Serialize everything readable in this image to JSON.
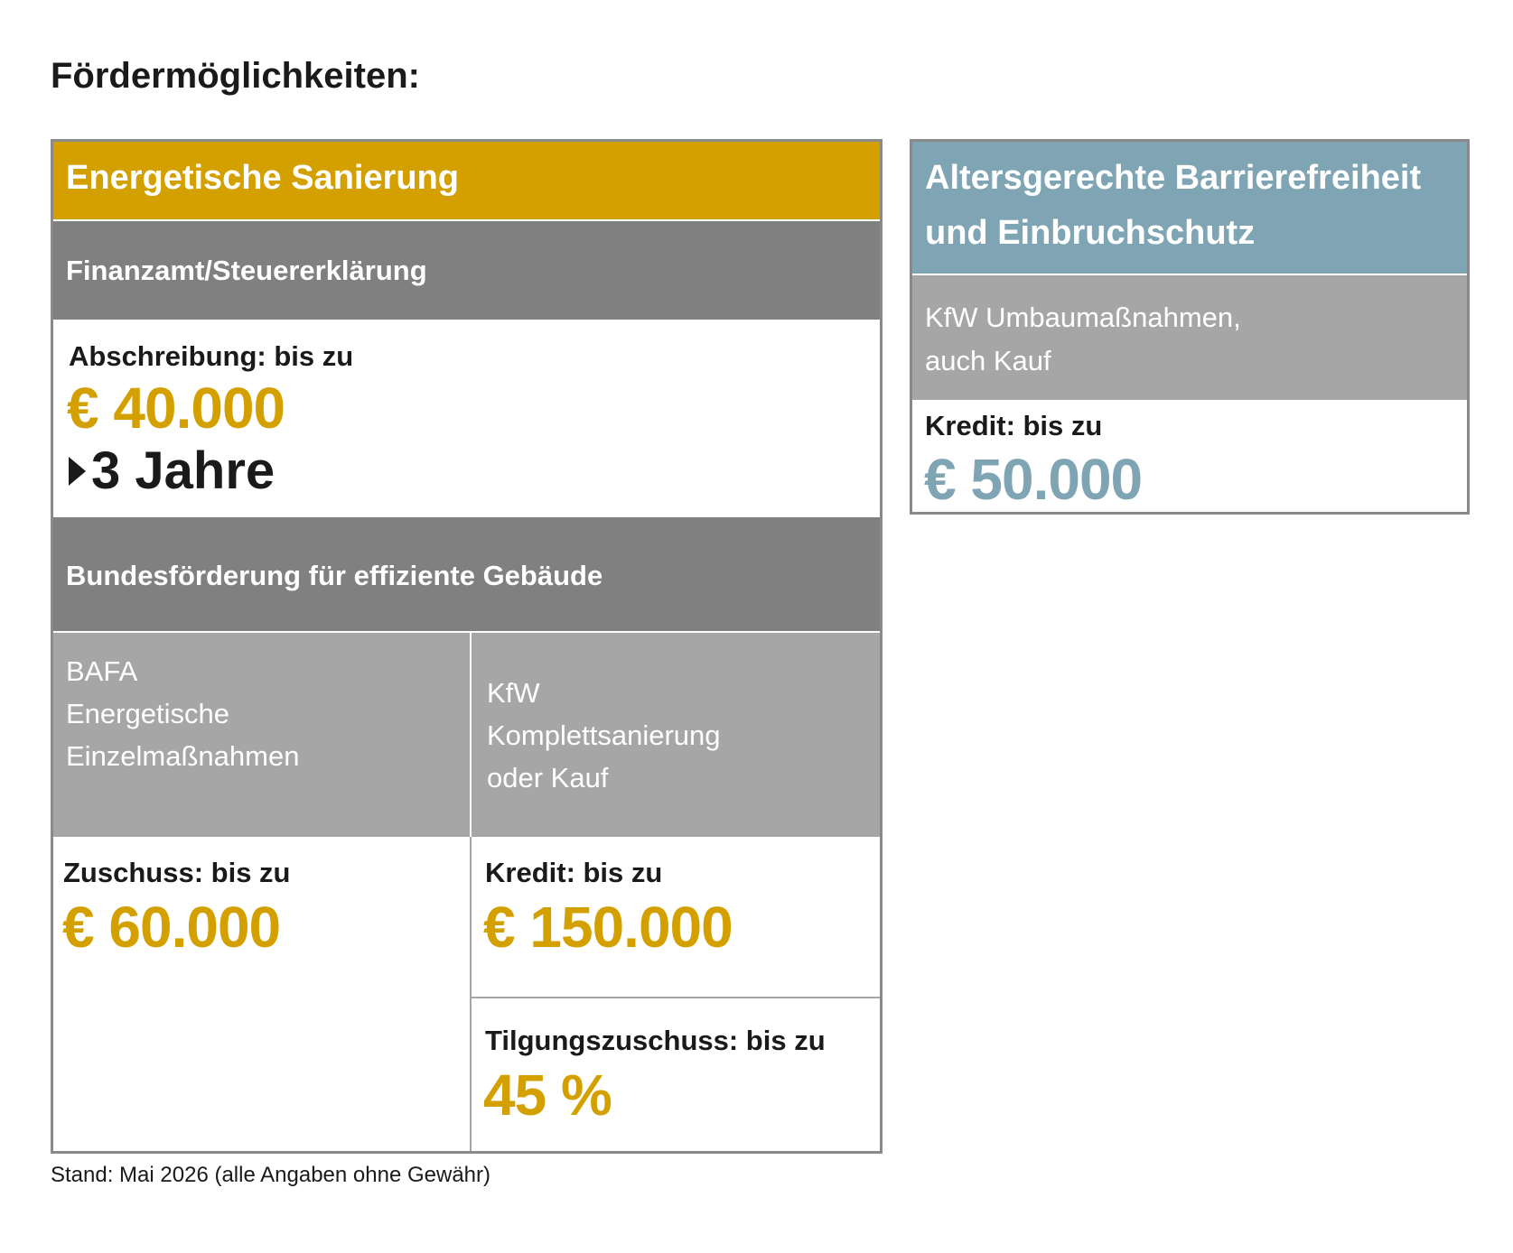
{
  "title": "Fördermöglichkeiten:",
  "left": {
    "header": "Energetische Sanierung",
    "tax": {
      "heading": "Finanzamt/Steuererklärung",
      "label": "Abschreibung: bis zu",
      "amount": "€ 40.000",
      "duration": "3 Jahre"
    },
    "federal": {
      "heading": "Bundesförderung für effiziente Gebäude",
      "bafa": {
        "lines": [
          "BAFA",
          "Energetische",
          "Einzelmaßnahmen"
        ],
        "label": "Zuschuss: bis zu",
        "amount": "€ 60.000"
      },
      "kfw": {
        "lines": [
          "KfW",
          "Komplettsanierung",
          "oder Kauf"
        ],
        "label": "Kredit: bis zu",
        "amount": "€ 150.000",
        "repayment_label": "Tilgungszuschuss: bis zu",
        "repayment_amount": "45 %"
      }
    }
  },
  "right": {
    "header_lines": [
      "Altersgerechte Barrierefreiheit",
      "und Einbruchschutz"
    ],
    "subheading_lines": [
      "KfW Umbaumaßnahmen,",
      "auch Kauf"
    ],
    "label": "Kredit: bis zu",
    "amount": "€ 50.000"
  },
  "footnote": "Stand: Mai 2026 (alle Angaben ohne Gewähr)"
}
